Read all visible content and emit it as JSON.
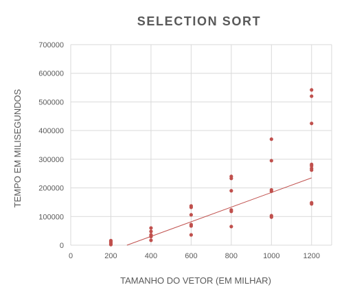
{
  "chart_data": {
    "type": "scatter",
    "title": "SELECTION SORT",
    "xlabel": "TAMANHO DO VETOR (EM MILHAR)",
    "ylabel": "TEMPO EM MILISEGUNDOS",
    "xlim": [
      0,
      1300
    ],
    "ylim": [
      0,
      700000
    ],
    "x_ticks": [
      0,
      200,
      400,
      600,
      800,
      1000,
      1200
    ],
    "y_ticks": [
      0,
      100000,
      200000,
      300000,
      400000,
      500000,
      600000,
      700000
    ],
    "x_tick_labels": [
      "0",
      "200",
      "400",
      "600",
      "800",
      "1000",
      "1200"
    ],
    "y_tick_labels": [
      "0",
      "100000",
      "200000",
      "300000",
      "400000",
      "500000",
      "600000",
      "700000"
    ],
    "grid": {
      "vertical": true,
      "horizontal": true
    },
    "legend": "none",
    "color": "#c0504d",
    "series": [
      {
        "points": [
          {
            "x": 200,
            "y": 2000
          },
          {
            "x": 200,
            "y": 5000
          },
          {
            "x": 200,
            "y": 9000
          },
          {
            "x": 200,
            "y": 13000
          },
          {
            "x": 200,
            "y": 16000
          },
          {
            "x": 400,
            "y": 17000
          },
          {
            "x": 400,
            "y": 30000
          },
          {
            "x": 400,
            "y": 36000
          },
          {
            "x": 400,
            "y": 48000
          },
          {
            "x": 400,
            "y": 60000
          },
          {
            "x": 600,
            "y": 36000
          },
          {
            "x": 600,
            "y": 67000
          },
          {
            "x": 600,
            "y": 72000
          },
          {
            "x": 600,
            "y": 106000
          },
          {
            "x": 600,
            "y": 132000
          },
          {
            "x": 600,
            "y": 137000
          },
          {
            "x": 800,
            "y": 65000
          },
          {
            "x": 800,
            "y": 118000
          },
          {
            "x": 800,
            "y": 123000
          },
          {
            "x": 800,
            "y": 190000
          },
          {
            "x": 800,
            "y": 233000
          },
          {
            "x": 800,
            "y": 240000
          },
          {
            "x": 1000,
            "y": 98000
          },
          {
            "x": 1000,
            "y": 103000
          },
          {
            "x": 1000,
            "y": 188000
          },
          {
            "x": 1000,
            "y": 193000
          },
          {
            "x": 1000,
            "y": 295000
          },
          {
            "x": 1000,
            "y": 370000
          },
          {
            "x": 1200,
            "y": 144000
          },
          {
            "x": 1200,
            "y": 148000
          },
          {
            "x": 1200,
            "y": 262000
          },
          {
            "x": 1200,
            "y": 268000
          },
          {
            "x": 1200,
            "y": 277000
          },
          {
            "x": 1200,
            "y": 282000
          },
          {
            "x": 1200,
            "y": 425000
          },
          {
            "x": 1200,
            "y": 520000
          },
          {
            "x": 1200,
            "y": 542000
          }
        ]
      }
    ],
    "trendline": {
      "type": "linear",
      "from": {
        "x": 280,
        "y": 0
      },
      "to": {
        "x": 1200,
        "y": 235000
      }
    }
  }
}
